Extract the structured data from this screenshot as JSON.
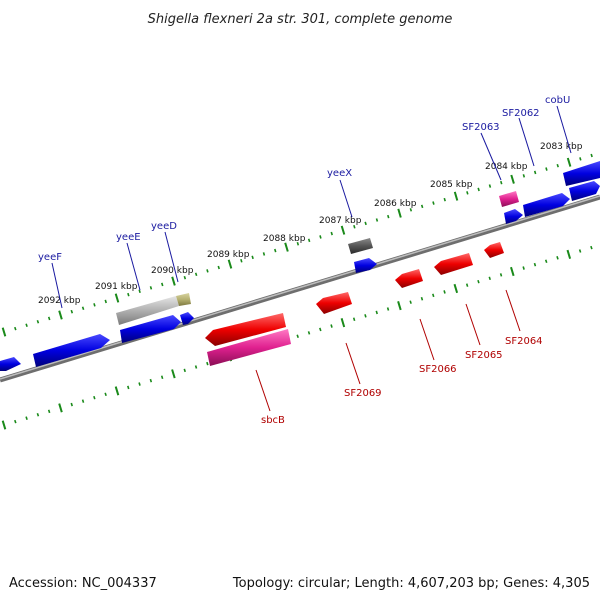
{
  "title": "Shigella flexneri 2a str. 301, complete genome",
  "footer": {
    "accession": "Accession: NC_004337",
    "summary": "Topology: circular; Length: 4,607,203 bp; Genes: 4,305"
  },
  "colors": {
    "forward_gene": "#0000e0",
    "reverse_gene": "#ee0000",
    "pink_gene": "#e0208f",
    "gray_gene": "#aaaaaa",
    "dark_gene": "#555555",
    "olive_gene": "#b5b070",
    "backbone": "#888888",
    "ticks": "#1a8a1a",
    "fwd_label": "#1a1aa0",
    "rev_label": "#b00000"
  },
  "scale_labels": [
    {
      "kbp": 2092,
      "text": "2092 kbp"
    },
    {
      "kbp": 2091,
      "text": "2091 kbp"
    },
    {
      "kbp": 2090,
      "text": "2090 kbp"
    },
    {
      "kbp": 2089,
      "text": "2089 kbp"
    },
    {
      "kbp": 2088,
      "text": "2088 kbp"
    },
    {
      "kbp": 2087,
      "text": "2087 kbp"
    },
    {
      "kbp": 2086,
      "text": "2086 kbp"
    },
    {
      "kbp": 2085,
      "text": "2085 kbp"
    },
    {
      "kbp": 2084,
      "text": "2084 kbp"
    },
    {
      "kbp": 2083,
      "text": "2083 kbp"
    }
  ],
  "forward_labels": [
    "yeeF",
    "yeeE",
    "yeeD",
    "yeeX",
    "SF2063",
    "SF2062",
    "cobU"
  ],
  "reverse_labels": [
    "sbcB",
    "SF2069",
    "SF2066",
    "SF2065",
    "SF2064"
  ]
}
